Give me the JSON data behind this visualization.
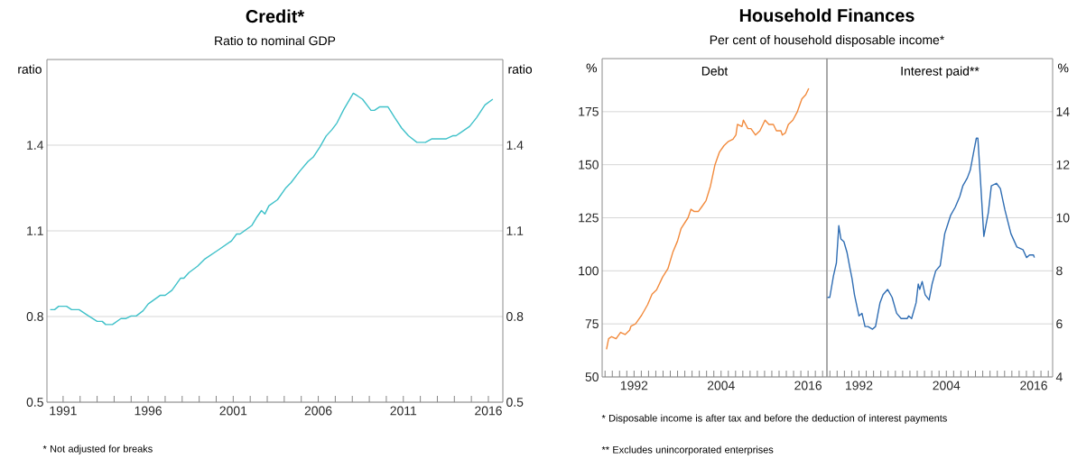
{
  "chart_data": [
    {
      "type": "line",
      "title": "Credit*",
      "subtitle": "Ratio to nominal GDP",
      "ylabel": "ratio",
      "y2label": "ratio",
      "grid": "y",
      "x": [
        1990.24,
        1990.5,
        1990.74,
        1991.2,
        1991.5,
        1991.94,
        1992.5,
        1993.0,
        1993.3,
        1993.5,
        1993.9,
        1994.4,
        1994.7,
        1995.0,
        1995.3,
        1995.7,
        1996.0,
        1996.7,
        1997.0,
        1997.4,
        1997.9,
        1998.1,
        1998.4,
        1998.9,
        1999.3,
        2000.1,
        2000.9,
        2001.2,
        2001.4,
        2002.1,
        2002.4,
        2002.66,
        2002.86,
        2003.1,
        2003.6,
        2004.1,
        2004.4,
        2004.9,
        2005.4,
        2005.7,
        2006.1,
        2006.46,
        2006.8,
        2007.1,
        2007.5,
        2008.06,
        2008.3,
        2008.6,
        2009.1,
        2009.3,
        2009.6,
        2010.1,
        2010.5,
        2010.9,
        2011.3,
        2011.8,
        2012.3,
        2012.66,
        2013.5,
        2013.9,
        2014.1,
        2014.9,
        2015.3,
        2015.8,
        2016.26
      ],
      "series": [
        {
          "color": "#3fc1c9",
          "values": [
            0.824,
            0.824,
            0.836,
            0.836,
            0.824,
            0.824,
            0.802,
            0.783,
            0.783,
            0.772,
            0.772,
            0.793,
            0.793,
            0.802,
            0.802,
            0.82,
            0.844,
            0.874,
            0.874,
            0.892,
            0.934,
            0.934,
            0.954,
            0.976,
            1.0,
            1.032,
            1.065,
            1.089,
            1.089,
            1.119,
            1.149,
            1.171,
            1.159,
            1.188,
            1.209,
            1.251,
            1.269,
            1.308,
            1.343,
            1.358,
            1.394,
            1.432,
            1.454,
            1.478,
            1.525,
            1.582,
            1.573,
            1.561,
            1.522,
            1.522,
            1.534,
            1.534,
            1.496,
            1.46,
            1.433,
            1.41,
            1.41,
            1.422,
            1.422,
            1.433,
            1.433,
            1.466,
            1.496,
            1.541,
            1.561
          ]
        }
      ],
      "xlim": [
        1990.05,
        2016.85
      ],
      "xticks": [
        1991,
        {
          "value": 1992,
          "label": null
        },
        {
          "value": 1993,
          "label": null
        },
        {
          "value": 1994,
          "label": null
        },
        {
          "value": 1995,
          "label": null
        },
        1996,
        {
          "value": 1997,
          "label": null
        },
        {
          "value": 1998,
          "label": null
        },
        {
          "value": 1999,
          "label": null
        },
        {
          "value": 2000,
          "label": null
        },
        2001,
        {
          "value": 2002,
          "label": null
        },
        {
          "value": 2003,
          "label": null
        },
        {
          "value": 2004,
          "label": null
        },
        {
          "value": 2005,
          "label": null
        },
        2006,
        {
          "value": 2007,
          "label": null
        },
        {
          "value": 2008,
          "label": null
        },
        {
          "value": 2009,
          "label": null
        },
        {
          "value": 2010,
          "label": null
        },
        2011,
        {
          "value": 2012,
          "label": null
        },
        {
          "value": 2013,
          "label": null
        },
        {
          "value": 2014,
          "label": null
        },
        {
          "value": 2015,
          "label": null
        },
        2016
      ],
      "ylim": [
        0.5,
        1.7
      ],
      "yticks": [
        0.5,
        0.8,
        1.1,
        1.4
      ],
      "y2lim": [
        0.5,
        1.7
      ],
      "y2ticks": [
        0.5,
        0.8,
        1.1,
        1.4
      ],
      "annotations": [
        "* Not adjusted for breaks"
      ]
    },
    {
      "type": "line",
      "title": "Household Finances",
      "subtitle": "Per cent of household disposable income*",
      "ylabel": "%",
      "grid": "y",
      "x": [
        1988.2,
        1988.49,
        1988.9,
        1989.52,
        1990.14,
        1990.76,
        1991.38,
        1991.59,
        1992.21,
        1992.62,
        1993.03,
        1993.86,
        1994.48,
        1995.1,
        1995.93,
        1996.67,
        1997.37,
        1997.99,
        1998.49,
        1999.44,
        1999.85,
        2000.26,
        2000.88,
        2001.3,
        2001.92,
        2002.54,
        2003.16,
        2003.78,
        2004.4,
        2005.02,
        2005.64,
        2006.05,
        2006.26,
        2006.88,
        2007.08,
        2007.7,
        2008.12,
        2008.74,
        2009.36,
        2010.06,
        2010.6,
        2011.21,
        2011.63,
        2012.25,
        2012.45,
        2012.87,
        2013.28,
        2013.9,
        2014.52,
        2015.14,
        2015.68,
        2016.09
      ],
      "series": [
        {
          "color": "#f28a3c",
          "values": [
            63,
            68,
            69,
            68,
            71,
            70,
            72,
            74,
            75,
            77,
            79,
            84,
            89,
            91,
            97,
            101,
            109,
            114,
            120,
            125,
            129,
            128,
            128,
            130,
            133,
            140,
            150,
            156,
            159,
            161,
            162,
            164,
            169,
            168,
            171,
            167,
            167,
            164,
            166,
            171,
            169,
            169,
            166,
            166,
            164,
            165,
            169,
            171,
            175,
            181,
            183,
            186
          ]
        }
      ],
      "xlim": [
        1987.6,
        2018.6
      ],
      "xticks": [
        {
          "value": 1988,
          "label": null
        },
        {
          "value": 1989,
          "label": null
        },
        {
          "value": 1990,
          "label": null
        },
        {
          "value": 1991,
          "label": null
        },
        1992,
        {
          "value": 1993,
          "label": null
        },
        {
          "value": 1994,
          "label": null
        },
        {
          "value": 1995,
          "label": null
        },
        {
          "value": 1996,
          "label": null
        },
        {
          "value": 1997,
          "label": null
        },
        {
          "value": 1998,
          "label": null
        },
        {
          "value": 1999,
          "label": null
        },
        {
          "value": 2000,
          "label": null
        },
        {
          "value": 2001,
          "label": null
        },
        {
          "value": 2002,
          "label": null
        },
        {
          "value": 2003,
          "label": null
        },
        2004,
        {
          "value": 2005,
          "label": null
        },
        {
          "value": 2006,
          "label": null
        },
        {
          "value": 2007,
          "label": null
        },
        {
          "value": 2008,
          "label": null
        },
        {
          "value": 2009,
          "label": null
        },
        {
          "value": 2010,
          "label": null
        },
        {
          "value": 2011,
          "label": null
        },
        {
          "value": 2012,
          "label": null
        },
        {
          "value": 2013,
          "label": null
        },
        {
          "value": 2014,
          "label": null
        },
        {
          "value": 2015,
          "label": null
        },
        2016,
        {
          "value": 2017,
          "label": null
        },
        {
          "value": 2018,
          "label": null
        }
      ],
      "ylim": [
        50,
        200
      ],
      "yticks": [
        50,
        75,
        100,
        125,
        150,
        175
      ],
      "annotations": [
        "Debt",
        "* Disposable income is after tax and before the deduction of interest payments",
        "** Excludes unincorporated enterprises"
      ]
    },
    {
      "type": "line",
      "title": "Interest paid**",
      "ylabel": "%",
      "grid": "y",
      "x": [
        1987.66,
        1987.99,
        1988.49,
        1988.9,
        1989.23,
        1989.52,
        1989.93,
        1990.35,
        1990.76,
        1991.05,
        1991.38,
        1992.0,
        1992.41,
        1992.83,
        1993.24,
        1993.86,
        1994.27,
        1994.89,
        1995.31,
        1995.93,
        1996.55,
        1997.17,
        1997.79,
        1998.61,
        1998.82,
        1999.23,
        1999.85,
        2000.14,
        2000.35,
        2000.68,
        2001.09,
        2001.63,
        2002.04,
        2002.54,
        2003.16,
        2003.78,
        2004.6,
        2005.22,
        2005.84,
        2006.26,
        2006.88,
        2007.29,
        2007.7,
        2008.12,
        2008.33,
        2008.65,
        2009.15,
        2009.77,
        2010.18,
        2010.88,
        2011.42,
        2012.04,
        2012.87,
        2013.69,
        2014.52,
        2015.02,
        2015.43,
        2015.97,
        2016.09
      ],
      "series": [
        {
          "color": "#2f6db3",
          "values": [
            7.0,
            7.0,
            7.8,
            8.3,
            9.7,
            9.2,
            9.1,
            8.7,
            8.1,
            7.7,
            7.1,
            6.3,
            6.4,
            5.9,
            5.9,
            5.8,
            5.9,
            6.8,
            7.1,
            7.3,
            7.0,
            6.4,
            6.2,
            6.2,
            6.3,
            6.2,
            6.8,
            7.5,
            7.3,
            7.6,
            7.1,
            6.9,
            7.5,
            8.0,
            8.2,
            9.4,
            10.1,
            10.4,
            10.8,
            11.2,
            11.5,
            11.8,
            12.4,
            13.0,
            13.0,
            11.6,
            9.3,
            10.2,
            11.2,
            11.3,
            11.1,
            10.3,
            9.4,
            8.9,
            8.8,
            8.5,
            8.6,
            8.6,
            8.5
          ]
        }
      ],
      "xlim": [
        1987.6,
        2018.6
      ],
      "xticks": [
        {
          "value": 1988,
          "label": null
        },
        {
          "value": 1989,
          "label": null
        },
        {
          "value": 1990,
          "label": null
        },
        {
          "value": 1991,
          "label": null
        },
        1992,
        {
          "value": 1993,
          "label": null
        },
        {
          "value": 1994,
          "label": null
        },
        {
          "value": 1995,
          "label": null
        },
        {
          "value": 1996,
          "label": null
        },
        {
          "value": 1997,
          "label": null
        },
        {
          "value": 1998,
          "label": null
        },
        {
          "value": 1999,
          "label": null
        },
        {
          "value": 2000,
          "label": null
        },
        {
          "value": 2001,
          "label": null
        },
        {
          "value": 2002,
          "label": null
        },
        {
          "value": 2003,
          "label": null
        },
        2004,
        {
          "value": 2005,
          "label": null
        },
        {
          "value": 2006,
          "label": null
        },
        {
          "value": 2007,
          "label": null
        },
        {
          "value": 2008,
          "label": null
        },
        {
          "value": 2009,
          "label": null
        },
        {
          "value": 2010,
          "label": null
        },
        {
          "value": 2011,
          "label": null
        },
        {
          "value": 2012,
          "label": null
        },
        {
          "value": 2013,
          "label": null
        },
        {
          "value": 2014,
          "label": null
        },
        {
          "value": 2015,
          "label": null
        },
        2016,
        {
          "value": 2017,
          "label": null
        },
        {
          "value": 2018,
          "label": null
        }
      ],
      "ylim": [
        4,
        16
      ],
      "yticks": [
        4,
        6,
        8,
        10,
        12,
        14
      ]
    }
  ]
}
